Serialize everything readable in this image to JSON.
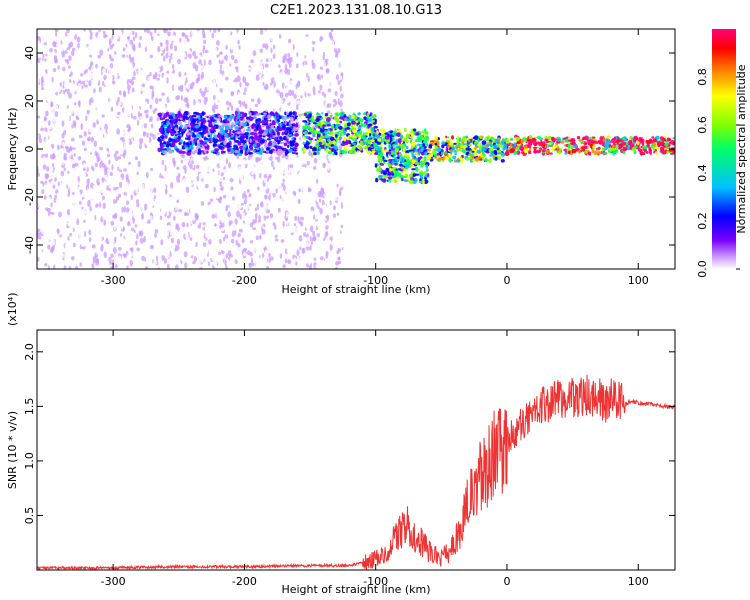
{
  "title": "C2E1.2023.131.08.10.G13",
  "chart_data": [
    {
      "type": "heatmap",
      "xlabel": "Height of straight line (km)",
      "ylabel": "Frequency (Hz)",
      "xlim": [
        -358,
        128
      ],
      "ylim": [
        -50,
        50
      ],
      "x_ticks": [
        -300,
        -200,
        -100,
        0,
        100
      ],
      "y_ticks": [
        -40,
        -20,
        0,
        20,
        40
      ],
      "colorbar": {
        "label": "Normalized spectral amplitude",
        "range": [
          0,
          1
        ],
        "ticks": [
          "0.0",
          "0.2",
          "0.4",
          "0.6",
          "0.8"
        ],
        "tick_values": [
          0.0,
          0.2,
          0.4,
          0.6,
          0.8
        ],
        "colormap": [
          "#ffffff",
          "#cc99ff",
          "#7a00ff",
          "#0000ff",
          "#00c0ff",
          "#00ff66",
          "#80ff00",
          "#ffff00",
          "#ff8800",
          "#ff0000",
          "#ff0077"
        ]
      },
      "regions": [
        {
          "x_range": [
            -358,
            -125
          ],
          "y_range": [
            -50,
            50
          ],
          "amplitude": 0.08,
          "pattern": "scattered noise"
        },
        {
          "x_range": [
            -265,
            -160
          ],
          "y_range": [
            -2,
            15
          ],
          "amplitude": 0.25
        },
        {
          "x_range": [
            -155,
            -100
          ],
          "y_range": [
            -2,
            15
          ],
          "amplitude": 0.45
        },
        {
          "x_range": [
            -100,
            -60
          ],
          "y_range": [
            -14,
            8
          ],
          "amplitude": 0.45
        },
        {
          "x_range": [
            -60,
            0
          ],
          "y_range": [
            -5,
            5
          ],
          "amplitude": 0.55
        },
        {
          "x_range": [
            0,
            128
          ],
          "y_range": [
            -2,
            5
          ],
          "amplitude": 0.9
        }
      ]
    },
    {
      "type": "line",
      "xlabel": "Height of straight line (km)",
      "ylabel": "SNR (10 * v/v)",
      "y_multiplier": "(x10⁴)",
      "xlim": [
        -358,
        128
      ],
      "ylim": [
        0,
        2.2
      ],
      "x_ticks": [
        -300,
        -200,
        -100,
        0,
        100
      ],
      "y_ticks": [
        0.5,
        1.0,
        1.5,
        2.0
      ],
      "y_tick_labels": [
        "0.5",
        "1.0",
        "1.5",
        "2.0"
      ],
      "color": "#ee3333",
      "series": [
        {
          "x": [
            -358,
            -300,
            -250,
            -200,
            -150,
            -120,
            -100,
            -90,
            -80,
            -75,
            -70,
            -65,
            -60,
            -55,
            -50,
            -45,
            -40,
            -35,
            -30,
            -25,
            -20,
            -15,
            -10,
            -5,
            0,
            5,
            10,
            15,
            20,
            25,
            30,
            35,
            40,
            45,
            50,
            55,
            60,
            65,
            70,
            75,
            80,
            85,
            90,
            95,
            100,
            110,
            120,
            128
          ],
          "y": [
            0.02,
            0.02,
            0.03,
            0.03,
            0.04,
            0.04,
            0.1,
            0.2,
            0.38,
            0.4,
            0.3,
            0.25,
            0.18,
            0.15,
            0.12,
            0.15,
            0.25,
            0.4,
            0.6,
            0.72,
            0.85,
            0.95,
            1.05,
            1.1,
            1.18,
            1.25,
            1.32,
            1.38,
            1.42,
            1.48,
            1.52,
            1.55,
            1.57,
            1.55,
            1.6,
            1.58,
            1.62,
            1.55,
            1.58,
            1.5,
            1.6,
            1.55,
            1.52,
            1.55,
            1.53,
            1.52,
            1.5,
            1.49
          ]
        }
      ]
    }
  ]
}
